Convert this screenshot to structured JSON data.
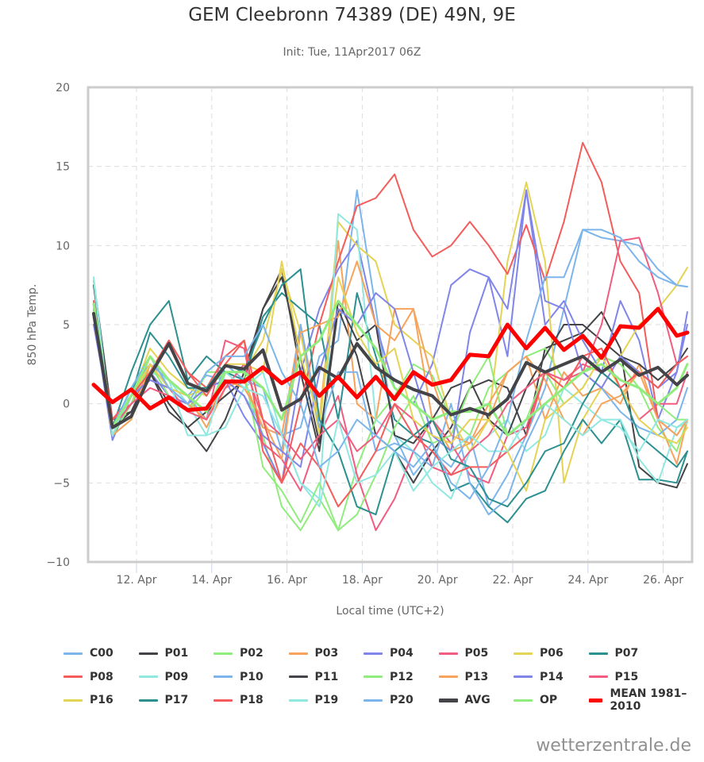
{
  "title": "GEM Cleebronn 74389 (DE) 49N, 9E",
  "subtitle": "Init: Tue, 11Apr2017 06Z",
  "credits": "wetterzentrale.de",
  "chart_data": {
    "type": "line",
    "title": "GEM Cleebronn 74389 (DE) 49N, 9E",
    "subtitle": "Init: Tue, 11Apr2017 06Z",
    "xlabel": "Local time (UTC+2)",
    "ylabel": "850 hPa Temp.",
    "ylim": [
      -10,
      20
    ],
    "yticks": [
      -10,
      -5,
      0,
      5,
      10,
      15,
      20
    ],
    "ytick_labels": [
      "−10",
      "−5",
      "0",
      "5",
      "10",
      "15",
      "20"
    ],
    "xlim_days": [
      10.6,
      26.85
    ],
    "xticks_days": [
      12,
      14,
      16,
      18,
      20,
      22,
      24,
      26
    ],
    "xtick_labels": [
      "12. Apr",
      "14. Apr",
      "16. Apr",
      "18. Apr",
      "20. Apr",
      "22. Apr",
      "24. Apr",
      "26. Apr"
    ],
    "x_start_day": 10.86,
    "x_step_days": 0.5,
    "grid": true,
    "legend_position": "bottom",
    "series": [
      {
        "name": "C00",
        "color": "#7cb5ec",
        "width": 2,
        "values": [
          7.5,
          -1.5,
          0.5,
          2.5,
          1.5,
          0.5,
          1.8,
          1.5,
          0.5,
          -1.5,
          -2,
          -1.5,
          3,
          4,
          13.5,
          6,
          -2,
          -4.5,
          -3,
          -4,
          -2,
          -6.5,
          -4.5,
          -2,
          1,
          6,
          11,
          10.5,
          10.3,
          10,
          8.5,
          7.5,
          7.4
        ]
      },
      {
        "name": "P01",
        "color": "#434348",
        "width": 2,
        "values": [
          7.8,
          -1,
          -0.5,
          2,
          -0.5,
          -1.5,
          -3,
          -1,
          2,
          6,
          8.5,
          2,
          -3,
          6,
          3,
          -2,
          -3,
          -5,
          -3,
          -1.5,
          1,
          1.5,
          1,
          -2,
          3.5,
          4,
          4.5,
          5.8,
          3.5,
          -4,
          -5,
          -5.3,
          -3.8
        ]
      },
      {
        "name": "P02",
        "color": "#90ed7d",
        "width": 2,
        "values": [
          6.5,
          -2,
          -1,
          2.5,
          0.5,
          -0.5,
          2,
          2,
          1.5,
          -2,
          -6.5,
          -8,
          -6,
          -8,
          -4,
          -1,
          0.5,
          2.5,
          1.8,
          -1,
          -2,
          1,
          2,
          3,
          3.5,
          1.5,
          2,
          3,
          2.5,
          1,
          -1.5,
          -3,
          -1
        ]
      },
      {
        "name": "P03",
        "color": "#f7a35c",
        "width": 2,
        "values": [
          6,
          -2,
          0,
          3,
          1,
          0.5,
          -1.5,
          1,
          1.5,
          -1.5,
          -2,
          5,
          -1,
          10.3,
          0,
          -1,
          6,
          6,
          -1,
          -3,
          -2.5,
          -1,
          2,
          3,
          -1,
          2,
          0.5,
          1,
          0,
          2.5,
          -1,
          -3.8,
          -1
        ]
      },
      {
        "name": "P04",
        "color": "#8085e9",
        "width": 2,
        "values": [
          5.5,
          -2.3,
          0.5,
          2,
          0.5,
          0,
          1,
          1.5,
          -0.8,
          -2.5,
          -5,
          2,
          6,
          8.5,
          10.3,
          5,
          1,
          0,
          2.5,
          7.5,
          8.5,
          8,
          3,
          13.5,
          5,
          6.5,
          4,
          2,
          6.5,
          4,
          -1,
          2,
          5.8
        ]
      },
      {
        "name": "P05",
        "color": "#f15c80",
        "width": 2,
        "values": [
          5,
          -1,
          0.5,
          1.5,
          1,
          -0.5,
          -1,
          4,
          3.5,
          -2.5,
          -3.5,
          -5.5,
          -2,
          0.5,
          -4.5,
          -8,
          -6,
          -3,
          -1,
          -2.5,
          -4.5,
          -5,
          -2,
          -1.5,
          2,
          1.5,
          2.5,
          2,
          1,
          -1,
          0,
          0,
          2
        ]
      },
      {
        "name": "P06",
        "color": "#e4d354",
        "width": 2,
        "values": [
          6,
          -1.5,
          0.5,
          3.5,
          2,
          1,
          0.5,
          2.5,
          2,
          4,
          8.5,
          4.5,
          -2,
          11.5,
          10,
          9,
          5,
          4,
          3,
          -1,
          -3,
          -1,
          9,
          14,
          9,
          -5,
          -1,
          1,
          3,
          5,
          6,
          7.5,
          8.6
        ]
      },
      {
        "name": "P07",
        "color": "#2b908f",
        "width": 2,
        "values": [
          5.5,
          -1.5,
          2,
          5,
          6.5,
          1.5,
          3,
          2,
          1.5,
          5.5,
          7,
          6,
          5,
          -1,
          7,
          3,
          -1,
          -2,
          -2.5,
          -5.5,
          -5,
          -6.5,
          -7.5,
          -6,
          -5.5,
          -3,
          -1,
          -2.5,
          -1,
          -4.8,
          -4.8,
          -5,
          -3
        ]
      },
      {
        "name": "P08",
        "color": "#f45b5b",
        "width": 2,
        "values": [
          6.5,
          -1,
          0,
          2,
          4,
          2,
          1,
          3,
          4,
          -3,
          -5,
          0,
          5,
          9,
          12.5,
          13,
          14.5,
          11,
          9.3,
          10,
          11.5,
          10,
          8.2,
          11.3,
          7.8,
          11.5,
          16.5,
          14,
          9,
          7,
          -1,
          -2,
          -1
        ]
      },
      {
        "name": "P09",
        "color": "#91e8e1",
        "width": 2,
        "values": [
          8,
          -2,
          0.5,
          2,
          1.5,
          0,
          -2,
          -1.5,
          1,
          2,
          -2,
          -5,
          -6,
          12,
          11,
          -1,
          -2,
          -3,
          -5,
          -6,
          -3,
          -2,
          -1,
          -3,
          -2,
          1,
          0,
          -1,
          -1,
          -3.5,
          -5,
          -1.5,
          -1.2
        ]
      },
      {
        "name": "P10",
        "color": "#7cb5ec",
        "width": 2,
        "values": [
          6,
          -2,
          1,
          2.5,
          1,
          0.5,
          -1,
          2.5,
          1.5,
          1,
          -3,
          5,
          -1.5,
          2,
          2,
          -3,
          -2.5,
          -3,
          -4,
          0,
          -5,
          -7,
          -6,
          -2.5,
          0,
          1,
          2,
          1,
          -0.5,
          -1.5,
          -2,
          -1,
          1
        ]
      },
      {
        "name": "P11",
        "color": "#434348",
        "width": 2,
        "values": [
          7.5,
          -1.5,
          -0.5,
          2,
          0,
          -1.5,
          -0.5,
          0.5,
          1.5,
          6,
          8,
          3,
          -2.5,
          6.5,
          4,
          5,
          -2,
          -2.5,
          -1,
          1,
          1.5,
          -1,
          -2,
          1,
          3,
          5,
          5,
          4,
          3,
          2.5,
          1.5,
          2.5,
          3.5
        ]
      },
      {
        "name": "P12",
        "color": "#90ed7d",
        "width": 2,
        "values": [
          6.2,
          -2,
          0,
          2.5,
          0.5,
          -0.5,
          1,
          2,
          2,
          -4,
          -5.5,
          -7.5,
          -5,
          -8,
          -7,
          -4.5,
          -1.5,
          0.5,
          -2.5,
          -2,
          1,
          3,
          -2,
          -1,
          2,
          0,
          1,
          3,
          2.5,
          1,
          0,
          -1,
          -1
        ]
      },
      {
        "name": "P13",
        "color": "#f7a35c",
        "width": 2,
        "values": [
          6,
          -2,
          -1,
          2.5,
          1,
          0,
          -1,
          1.5,
          1,
          -1,
          -3.5,
          4.5,
          5,
          5.5,
          9,
          5,
          4,
          6,
          1.5,
          -2,
          -2.5,
          0,
          2,
          3,
          1.5,
          -1,
          -2,
          0,
          0.5,
          2,
          -1,
          -2,
          -1
        ]
      },
      {
        "name": "P14",
        "color": "#8085e9",
        "width": 2,
        "values": [
          5,
          -1.5,
          0.5,
          1.5,
          1,
          0,
          1,
          1.5,
          0.5,
          -2,
          -3,
          -4,
          2,
          6,
          5,
          7,
          6,
          2,
          -2,
          -3,
          4.5,
          8,
          6,
          13.5,
          6.5,
          6,
          2,
          1,
          3,
          2,
          1,
          2,
          5
        ]
      },
      {
        "name": "P15",
        "color": "#f15c80",
        "width": 2,
        "values": [
          5.5,
          -1.5,
          0,
          1,
          0.5,
          -0.5,
          -1,
          1,
          2.5,
          -1,
          -2,
          -3.5,
          -2,
          -1,
          -3,
          -2,
          0,
          -1,
          -4,
          -4.5,
          -3,
          -2,
          0,
          1,
          2,
          1.5,
          2,
          5,
          10.3,
          10.5,
          7,
          2.5,
          3
        ]
      },
      {
        "name": "P16",
        "color": "#e4d354",
        "width": 2,
        "values": [
          6,
          -1.5,
          0.5,
          2.5,
          1,
          0.5,
          1,
          2.5,
          2.5,
          2,
          9,
          3,
          -1,
          8,
          4.5,
          2.5,
          3.5,
          -1,
          -2,
          -2.5,
          -1,
          -1,
          -3,
          -5.5,
          -1,
          0,
          1,
          3,
          1,
          -1,
          -2,
          -2.5,
          -1.5
        ]
      },
      {
        "name": "P17",
        "color": "#2b908f",
        "width": 2,
        "values": [
          6,
          -1.5,
          0.5,
          4.5,
          3,
          1,
          1,
          2.5,
          2,
          5,
          7.5,
          8.5,
          -1,
          -3,
          -6.5,
          -7,
          -3,
          -2,
          -1,
          -3.5,
          -4,
          -6,
          -6.5,
          -5,
          -3,
          -2.5,
          0,
          2,
          1,
          -2,
          -3,
          -4,
          -3
        ]
      },
      {
        "name": "P18",
        "color": "#f45b5b",
        "width": 2,
        "values": [
          6,
          -1,
          0.5,
          2,
          4,
          2,
          0.5,
          2.5,
          4,
          -1,
          -5,
          -2.5,
          -4,
          -6.5,
          -5,
          -3,
          0,
          -2,
          -3,
          -4.5,
          -4,
          -4,
          -3,
          -2,
          2,
          1,
          3,
          3.5,
          1,
          2,
          1,
          2.5,
          3
        ]
      },
      {
        "name": "P19",
        "color": "#91e8e1",
        "width": 2,
        "values": [
          7.8,
          -2,
          1,
          3,
          1.5,
          -2,
          -2,
          2,
          1,
          0.5,
          -2,
          -5,
          -6.5,
          -1,
          -5,
          -4.5,
          -3,
          -5.5,
          -4,
          -3,
          -2,
          -3,
          -3,
          -1,
          0,
          -1,
          -2,
          -1,
          -1.5,
          -3,
          -1,
          -1.5,
          -1
        ]
      },
      {
        "name": "P20",
        "color": "#7cb5ec",
        "width": 2,
        "values": [
          6,
          -1.5,
          1,
          3,
          1,
          0,
          2,
          3,
          3,
          5,
          2,
          0,
          -4,
          -3,
          -1,
          -2,
          -3,
          -4,
          -2.5,
          -5,
          -6,
          -4,
          -1,
          4,
          8,
          8,
          11,
          11,
          10.5,
          9,
          8,
          7.5,
          7.4
        ]
      },
      {
        "name": "OP",
        "color": "#90ed7d",
        "width": 3,
        "values": [
          6.3,
          -1.5,
          0.5,
          3,
          1.5,
          0.5,
          -0.5,
          2,
          2,
          1,
          -1,
          3,
          4,
          6.5,
          5,
          3.5,
          1,
          0,
          -1,
          -0.5,
          -0.5,
          0,
          -2,
          -1,
          0,
          1,
          2,
          2.5,
          1.5,
          1,
          0,
          1,
          2.5
        ]
      },
      {
        "name": "AVG",
        "color": "#434348",
        "width": 4,
        "values": [
          5.7,
          -1.5,
          -0.8,
          1.8,
          3.8,
          1.3,
          0.8,
          2.4,
          2.2,
          3.4,
          -0.4,
          0.3,
          2.3,
          1.6,
          3.8,
          2.3,
          1.5,
          0.9,
          0.5,
          -0.7,
          -0.3,
          -0.7,
          0.3,
          2.6,
          2.0,
          2.5,
          3.0,
          2.0,
          2.8,
          1.8,
          2.3,
          1.2,
          1.8
        ]
      },
      {
        "name": "MEAN 1981-2010",
        "color": "#ff0000",
        "width": 5,
        "values": [
          1.2,
          0.1,
          0.9,
          -0.3,
          0.4,
          -0.4,
          -0.3,
          1.4,
          1.4,
          2.3,
          1.3,
          2.0,
          0.5,
          1.7,
          0.4,
          1.7,
          0.3,
          2.0,
          1.2,
          1.5,
          3.1,
          3.0,
          5.0,
          3.5,
          4.8,
          3.4,
          4.3,
          2.9,
          4.9,
          4.8,
          6.0,
          4.3,
          4.5
        ]
      }
    ]
  },
  "legend": [
    {
      "label": "C00",
      "color": "#7cb5ec",
      "thick": false
    },
    {
      "label": "P01",
      "color": "#434348",
      "thick": false
    },
    {
      "label": "P02",
      "color": "#90ed7d",
      "thick": false
    },
    {
      "label": "P03",
      "color": "#f7a35c",
      "thick": false
    },
    {
      "label": "P04",
      "color": "#8085e9",
      "thick": false
    },
    {
      "label": "P05",
      "color": "#f15c80",
      "thick": false
    },
    {
      "label": "P06",
      "color": "#e4d354",
      "thick": false
    },
    {
      "label": "P07",
      "color": "#2b908f",
      "thick": false
    },
    {
      "label": "P08",
      "color": "#f45b5b",
      "thick": false
    },
    {
      "label": "P09",
      "color": "#91e8e1",
      "thick": false
    },
    {
      "label": "P10",
      "color": "#7cb5ec",
      "thick": false
    },
    {
      "label": "P11",
      "color": "#434348",
      "thick": false
    },
    {
      "label": "P12",
      "color": "#90ed7d",
      "thick": false
    },
    {
      "label": "P13",
      "color": "#f7a35c",
      "thick": false
    },
    {
      "label": "P14",
      "color": "#8085e9",
      "thick": false
    },
    {
      "label": "P15",
      "color": "#f15c80",
      "thick": false
    },
    {
      "label": "P16",
      "color": "#e4d354",
      "thick": false
    },
    {
      "label": "P17",
      "color": "#2b908f",
      "thick": false
    },
    {
      "label": "P18",
      "color": "#f45b5b",
      "thick": false
    },
    {
      "label": "P19",
      "color": "#91e8e1",
      "thick": false
    },
    {
      "label": "P20",
      "color": "#7cb5ec",
      "thick": false
    },
    {
      "label": "AVG",
      "color": "#434348",
      "thick": true
    },
    {
      "label": "OP",
      "color": "#90ed7d",
      "thick": false
    },
    {
      "label": "MEAN 1981–2010",
      "color": "#ff0000",
      "thick": true
    }
  ]
}
